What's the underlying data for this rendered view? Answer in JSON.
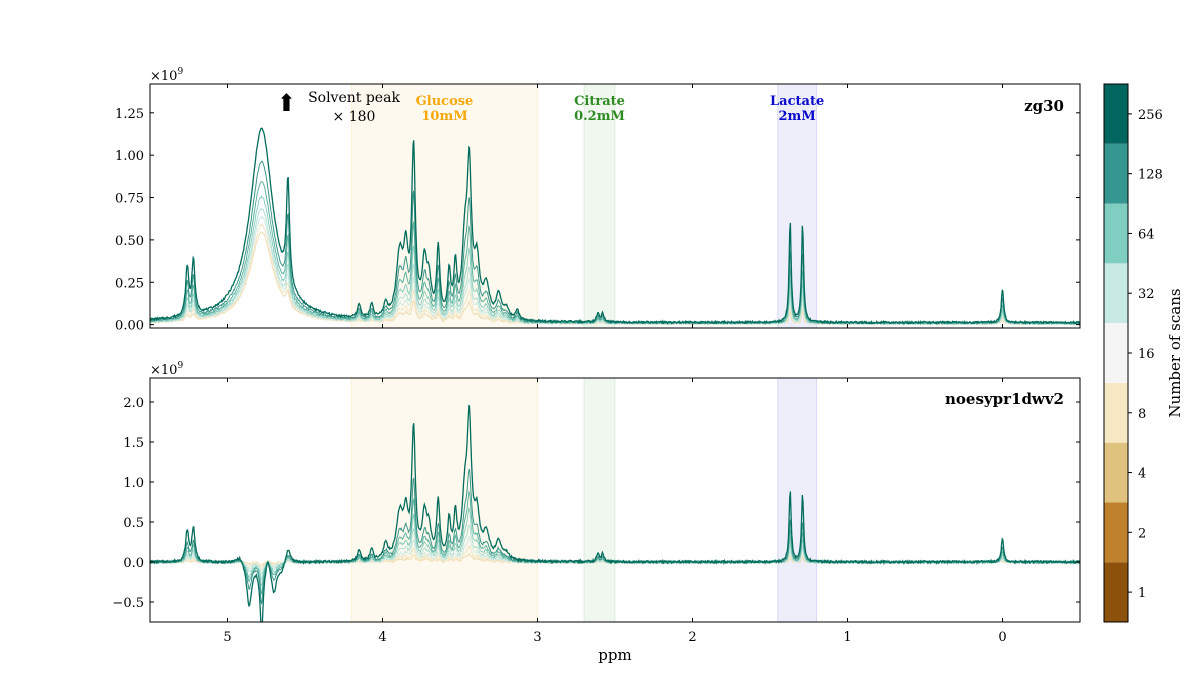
{
  "chart_data": [
    {
      "type": "line",
      "panel": "top",
      "title": "zg30",
      "xlabel": "ppm",
      "ylabel": "",
      "x_reversed": true,
      "xlim": [
        5.5,
        -0.5
      ],
      "ylim": [
        -0.02,
        1.42
      ],
      "y_exponent_label": "×10",
      "y_exponent_power": "9",
      "yticks": [
        0.0,
        0.25,
        0.5,
        0.75,
        1.0,
        1.25
      ],
      "ytick_labels": [
        "0.00",
        "0.25",
        "0.50",
        "0.75",
        "1.00",
        "1.25"
      ],
      "regions": [
        {
          "name": "Glucose",
          "conc": "10mM",
          "range": [
            3.0,
            4.2
          ],
          "color": "#f6a70b"
        },
        {
          "name": "Citrate",
          "conc": "0.2mM",
          "range": [
            2.5,
            2.7
          ],
          "color": "#2e8b22"
        },
        {
          "name": "Lactate",
          "conc": "2mM",
          "range": [
            1.2,
            1.45
          ],
          "color": "#0a0acc"
        }
      ],
      "annotation": {
        "arrow": "⬆",
        "line1": "Solvent peak",
        "line2": "× 180",
        "x_ppm": 4.62
      },
      "peaks": [
        {
          "ppm": 5.26,
          "height": 0.28,
          "width": 0.012
        },
        {
          "ppm": 5.22,
          "height": 0.32,
          "width": 0.012
        },
        {
          "ppm": 4.61,
          "height": 0.62,
          "width": 0.012
        },
        {
          "ppm": 4.15,
          "height": 0.08,
          "width": 0.012
        },
        {
          "ppm": 4.07,
          "height": 0.08,
          "width": 0.012
        },
        {
          "ppm": 3.98,
          "height": 0.08,
          "width": 0.014
        },
        {
          "ppm": 3.89,
          "height": 0.36,
          "width": 0.025
        },
        {
          "ppm": 3.85,
          "height": 0.34,
          "width": 0.018
        },
        {
          "ppm": 3.8,
          "height": 0.98,
          "width": 0.014
        },
        {
          "ppm": 3.73,
          "height": 0.3,
          "width": 0.018
        },
        {
          "ppm": 3.7,
          "height": 0.2,
          "width": 0.018
        },
        {
          "ppm": 3.64,
          "height": 0.4,
          "width": 0.012
        },
        {
          "ppm": 3.57,
          "height": 0.25,
          "width": 0.012
        },
        {
          "ppm": 3.53,
          "height": 0.28,
          "width": 0.012
        },
        {
          "ppm": 3.47,
          "height": 0.38,
          "width": 0.02
        },
        {
          "ppm": 3.44,
          "height": 0.85,
          "width": 0.018
        },
        {
          "ppm": 3.39,
          "height": 0.3,
          "width": 0.02
        },
        {
          "ppm": 3.33,
          "height": 0.18,
          "width": 0.025
        },
        {
          "ppm": 3.25,
          "height": 0.14,
          "width": 0.02
        },
        {
          "ppm": 3.2,
          "height": 0.06,
          "width": 0.02
        },
        {
          "ppm": 3.13,
          "height": 0.06,
          "width": 0.012
        },
        {
          "ppm": 2.61,
          "height": 0.05,
          "width": 0.01
        },
        {
          "ppm": 2.58,
          "height": 0.05,
          "width": 0.01
        },
        {
          "ppm": 1.37,
          "height": 0.6,
          "width": 0.008
        },
        {
          "ppm": 1.29,
          "height": 0.58,
          "width": 0.008
        },
        {
          "ppm": 0.0,
          "height": 0.2,
          "width": 0.009
        }
      ],
      "solvent": {
        "ppm": 4.78,
        "height": 1.9,
        "width": 0.09
      },
      "baseline_offset": 0.012,
      "series": [
        {
          "scans": 1,
          "scale": 0.12,
          "color": "#f0ddb3"
        },
        {
          "scans": 2,
          "scale": 0.18,
          "color": "#f2e6c7"
        },
        {
          "scans": 4,
          "scale": 0.25,
          "color": "#cdeae3"
        },
        {
          "scans": 8,
          "scale": 0.32,
          "color": "#b3e0d6"
        },
        {
          "scans": 16,
          "scale": 0.42,
          "color": "#8ccfbf"
        },
        {
          "scans": 32,
          "scale": 0.55,
          "color": "#5eb3a3"
        },
        {
          "scans": 64,
          "scale": 0.72,
          "color": "#3a9688"
        },
        {
          "scans": 128,
          "scale": 1.0,
          "color": "#026c5c"
        }
      ]
    },
    {
      "type": "line",
      "panel": "bottom",
      "title": "noesypr1dwv2",
      "xlabel": "ppm",
      "ylabel": "",
      "x_reversed": true,
      "xlim": [
        5.5,
        -0.5
      ],
      "ylim": [
        -0.75,
        2.3
      ],
      "y_exponent_label": "×10",
      "y_exponent_power": "9",
      "yticks": [
        -0.5,
        0.0,
        0.5,
        1.0,
        1.5,
        2.0
      ],
      "ytick_labels": [
        "−0.5",
        "0.0",
        "0.5",
        "1.0",
        "1.5",
        "2.0"
      ],
      "xticks": [
        5,
        4,
        3,
        2,
        1,
        0
      ],
      "xtick_labels": [
        "5",
        "4",
        "3",
        "2",
        "1",
        "0"
      ],
      "regions": [
        {
          "name": "Glucose",
          "range": [
            3.0,
            4.2
          ],
          "color": "#f6a70b"
        },
        {
          "name": "Citrate",
          "range": [
            2.5,
            2.7
          ],
          "color": "#2e8b22"
        },
        {
          "name": "Lactate",
          "range": [
            1.2,
            1.45
          ],
          "color": "#0a0acc"
        }
      ],
      "peaks": [
        {
          "ppm": 5.26,
          "height": 0.38,
          "width": 0.012
        },
        {
          "ppm": 5.22,
          "height": 0.42,
          "width": 0.012
        },
        {
          "ppm": 4.61,
          "height": 0.2,
          "width": 0.02
        },
        {
          "ppm": 4.15,
          "height": 0.14,
          "width": 0.012
        },
        {
          "ppm": 4.07,
          "height": 0.14,
          "width": 0.012
        },
        {
          "ppm": 3.98,
          "height": 0.2,
          "width": 0.016
        },
        {
          "ppm": 3.89,
          "height": 0.55,
          "width": 0.025
        },
        {
          "ppm": 3.85,
          "height": 0.5,
          "width": 0.018
        },
        {
          "ppm": 3.8,
          "height": 1.6,
          "width": 0.014
        },
        {
          "ppm": 3.73,
          "height": 0.5,
          "width": 0.018
        },
        {
          "ppm": 3.7,
          "height": 0.35,
          "width": 0.018
        },
        {
          "ppm": 3.64,
          "height": 0.7,
          "width": 0.012
        },
        {
          "ppm": 3.57,
          "height": 0.45,
          "width": 0.012
        },
        {
          "ppm": 3.53,
          "height": 0.5,
          "width": 0.012
        },
        {
          "ppm": 3.47,
          "height": 0.65,
          "width": 0.02
        },
        {
          "ppm": 3.44,
          "height": 1.65,
          "width": 0.018
        },
        {
          "ppm": 3.39,
          "height": 0.5,
          "width": 0.02
        },
        {
          "ppm": 3.33,
          "height": 0.3,
          "width": 0.025
        },
        {
          "ppm": 3.25,
          "height": 0.22,
          "width": 0.02
        },
        {
          "ppm": 3.2,
          "height": 0.08,
          "width": 0.02
        },
        {
          "ppm": 2.61,
          "height": 0.1,
          "width": 0.01
        },
        {
          "ppm": 2.58,
          "height": 0.1,
          "width": 0.01
        },
        {
          "ppm": 1.37,
          "height": 0.9,
          "width": 0.008
        },
        {
          "ppm": 1.29,
          "height": 0.85,
          "width": 0.008
        },
        {
          "ppm": 0.0,
          "height": 0.3,
          "width": 0.009
        },
        {
          "ppm": 4.92,
          "height": 0.1,
          "width": 0.03
        },
        {
          "ppm": 4.86,
          "height": -0.55,
          "width": 0.02
        },
        {
          "ppm": 4.78,
          "height": -0.85,
          "width": 0.012
        },
        {
          "ppm": 4.74,
          "height": 0.15,
          "width": 0.012
        },
        {
          "ppm": 4.7,
          "height": -0.35,
          "width": 0.02
        },
        {
          "ppm": 4.65,
          "height": -0.1,
          "width": 0.03
        }
      ],
      "baseline_offset": 0.0,
      "series": [
        {
          "scans": 1,
          "scale": 0.05,
          "color": "#f0ddb3"
        },
        {
          "scans": 2,
          "scale": 0.1,
          "color": "#f2e6c7"
        },
        {
          "scans": 4,
          "scale": 0.16,
          "color": "#cdeae3"
        },
        {
          "scans": 8,
          "scale": 0.24,
          "color": "#b3e0d6"
        },
        {
          "scans": 16,
          "scale": 0.34,
          "color": "#8ccfbf"
        },
        {
          "scans": 32,
          "scale": 0.45,
          "color": "#5eb3a3"
        },
        {
          "scans": 64,
          "scale": 0.6,
          "color": "#3a9688"
        },
        {
          "scans": 128,
          "scale": 1.0,
          "color": "#026c5c"
        }
      ]
    }
  ],
  "colorbar": {
    "label": "Number of scans",
    "levels": [
      {
        "label": "1",
        "color": "#8c510a"
      },
      {
        "label": "2",
        "color": "#bf812d"
      },
      {
        "label": "4",
        "color": "#dfc27d"
      },
      {
        "label": "8",
        "color": "#f6e8c3"
      },
      {
        "label": "16",
        "color": "#f5f5f5"
      },
      {
        "label": "32",
        "color": "#c7eae5"
      },
      {
        "label": "64",
        "color": "#80cdc1"
      },
      {
        "label": "128",
        "color": "#35978f"
      },
      {
        "label": "256",
        "color": "#01665e"
      }
    ]
  }
}
